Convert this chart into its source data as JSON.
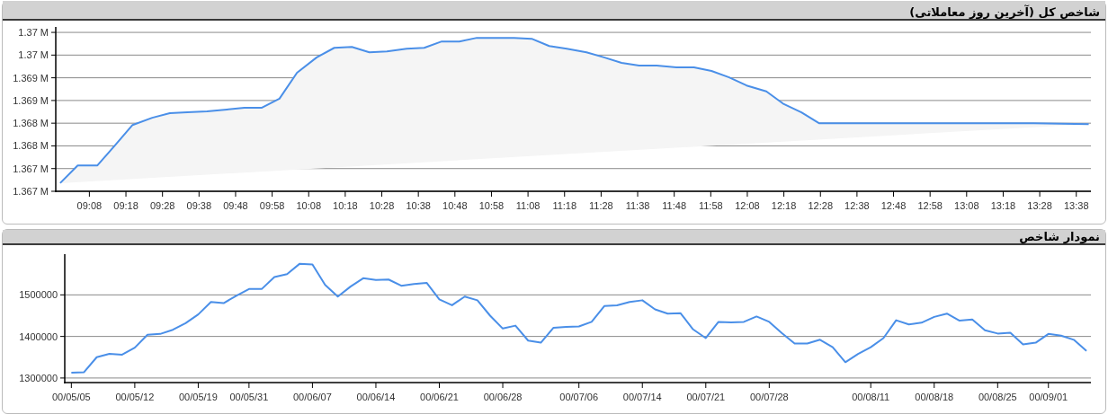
{
  "chart_data": [
    {
      "type": "area",
      "title": "شاخص کل (آخرین روز معاملاتی)",
      "color": "#4a8fe8",
      "grid": "y",
      "marker": "none",
      "x": [
        9.0,
        9.08,
        9.17,
        9.25,
        9.33,
        9.42,
        9.5,
        9.58,
        9.67,
        9.76,
        9.84,
        9.92,
        10.0,
        10.08,
        10.17,
        10.25,
        10.33,
        10.41,
        10.49,
        10.58,
        10.66,
        10.74,
        10.82,
        10.9,
        10.99,
        11.07,
        11.15,
        11.23,
        11.31,
        11.4,
        11.48,
        11.56,
        11.64,
        11.72,
        11.81,
        11.89,
        11.97,
        12.05,
        12.13,
        12.22,
        12.3,
        12.38,
        12.46,
        13.44,
        13.69
      ],
      "values": [
        1366680,
        1367070,
        1367070,
        1367510,
        1367960,
        1368120,
        1368220,
        1368240,
        1368260,
        1368300,
        1368340,
        1368340,
        1368540,
        1369110,
        1369450,
        1369660,
        1369680,
        1369560,
        1369580,
        1369640,
        1369660,
        1369800,
        1369800,
        1369880,
        1369880,
        1369880,
        1369860,
        1369700,
        1369640,
        1369560,
        1369450,
        1369330,
        1369270,
        1369270,
        1369230,
        1369230,
        1369150,
        1369010,
        1368830,
        1368700,
        1368420,
        1368240,
        1368000,
        1368000,
        1367980
      ],
      "xlim": [
        8.98,
        13.7
      ],
      "ylim": [
        1366500,
        1370120
      ],
      "xticks": [
        {
          "value": 9.1333,
          "label": "09:08"
        },
        {
          "value": 9.3,
          "label": "09:18"
        },
        {
          "value": 9.4667,
          "label": "09:28"
        },
        {
          "value": 9.6333,
          "label": "09:38"
        },
        {
          "value": 9.8,
          "label": "09:48"
        },
        {
          "value": 9.9667,
          "label": "09:58"
        },
        {
          "value": 10.1333,
          "label": "10:08"
        },
        {
          "value": 10.3,
          "label": "10:18"
        },
        {
          "value": 10.4667,
          "label": "10:28"
        },
        {
          "value": 10.6333,
          "label": "10:38"
        },
        {
          "value": 10.8,
          "label": "10:48"
        },
        {
          "value": 10.9667,
          "label": "10:58"
        },
        {
          "value": 11.1333,
          "label": "11:08"
        },
        {
          "value": 11.3,
          "label": "11:18"
        },
        {
          "value": 11.4667,
          "label": "11:28"
        },
        {
          "value": 11.6333,
          "label": "11:38"
        },
        {
          "value": 11.8,
          "label": "11:48"
        },
        {
          "value": 11.9667,
          "label": "11:58"
        },
        {
          "value": 12.1333,
          "label": "12:08"
        },
        {
          "value": 12.3,
          "label": "12:18"
        },
        {
          "value": 12.4667,
          "label": "12:28"
        },
        {
          "value": 12.6333,
          "label": "12:38"
        },
        {
          "value": 12.8,
          "label": "12:48"
        },
        {
          "value": 12.9667,
          "label": "12:58"
        },
        {
          "value": 13.1333,
          "label": "13:08"
        },
        {
          "value": 13.3,
          "label": "13:18"
        },
        {
          "value": 13.4667,
          "label": "13:28"
        },
        {
          "value": 13.6333,
          "label": "13:38"
        }
      ],
      "yticks": [
        {
          "value": 1366500,
          "label": "1.367 M"
        },
        {
          "value": 1367000,
          "label": "1.367 M"
        },
        {
          "value": 1367500,
          "label": "1.368 M"
        },
        {
          "value": 1368000,
          "label": "1.368 M"
        },
        {
          "value": 1368500,
          "label": "1.369 M"
        },
        {
          "value": 1369000,
          "label": "1.369 M"
        },
        {
          "value": 1369500,
          "label": "1.37 M"
        },
        {
          "value": 1370000,
          "label": "1.37 M"
        }
      ]
    },
    {
      "type": "line",
      "title": "نمودار شاخص",
      "color": "#4a8fe8",
      "grid": "y",
      "marker": "none",
      "categories": [
        "00/05/05",
        null,
        null,
        null,
        null,
        "00/05/12",
        null,
        null,
        null,
        null,
        "00/05/19",
        null,
        null,
        null,
        "00/05/31",
        null,
        null,
        null,
        null,
        "00/06/07",
        null,
        null,
        null,
        null,
        "00/06/14",
        null,
        null,
        null,
        null,
        "00/06/21",
        null,
        null,
        null,
        null,
        "00/06/28",
        null,
        null,
        null,
        null,
        null,
        "00/07/06",
        null,
        null,
        null,
        null,
        "00/07/14",
        null,
        null,
        null,
        null,
        "00/07/21",
        null,
        null,
        null,
        null,
        "00/07/28",
        null,
        null,
        null,
        null,
        null,
        null,
        null,
        "00/08/11",
        null,
        null,
        null,
        null,
        "00/08/18",
        null,
        null,
        null,
        null,
        "00/08/25",
        null,
        null,
        null,
        "00/09/01",
        null,
        null,
        null
      ],
      "values": [
        1313000,
        1314000,
        1350000,
        1358000,
        1356000,
        1373000,
        1404000,
        1406000,
        1416000,
        1432000,
        1453000,
        1483000,
        1480000,
        1498000,
        1514000,
        1514000,
        1543000,
        1550000,
        1575000,
        1573000,
        1524000,
        1496000,
        1520000,
        1540000,
        1536000,
        1537000,
        1522000,
        1526000,
        1529000,
        1489000,
        1475000,
        1496000,
        1487000,
        1450000,
        1419000,
        1426000,
        1390000,
        1385000,
        1421000,
        1423000,
        1424000,
        1435000,
        1473000,
        1475000,
        1483000,
        1487000,
        1465000,
        1455000,
        1456000,
        1417000,
        1396000,
        1435000,
        1434000,
        1435000,
        1448000,
        1435000,
        1408000,
        1383000,
        1383000,
        1392000,
        1374000,
        1338000,
        1358000,
        1374000,
        1396000,
        1439000,
        1429000,
        1433000,
        1447000,
        1455000,
        1438000,
        1441000,
        1415000,
        1407000,
        1409000,
        1381000,
        1385000,
        1406000,
        1402000,
        1392000,
        1365000
      ],
      "ylim": [
        1289000,
        1598000
      ],
      "yticks": [
        1300000,
        1400000,
        1500000
      ]
    }
  ]
}
